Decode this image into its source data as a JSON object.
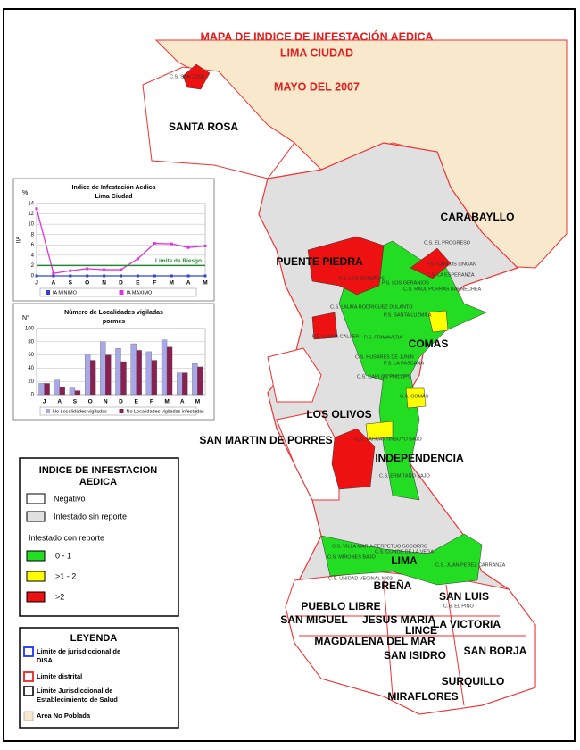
{
  "header": {
    "lines": [
      "MAPA DE INDICE DE INFESTACIÓN AEDICA",
      "LIMA CIUDAD",
      "MAYO DEL 2007"
    ]
  },
  "districts": [
    "SANTA ROSA",
    "CARABAYLLO",
    "PUENTE PIEDRA",
    "COMAS",
    "LOS OLIVOS",
    "SAN MARTIN DE PORRES",
    "INDEPENDENCIA",
    "LIMA",
    "BREÑA",
    "SAN LUIS",
    "PUEBLO LIBRE",
    "SAN MIGUEL",
    "JESUS MARIA",
    "LA VICTORIA",
    "LINCE",
    "MAGDALENA DEL MAR",
    "SAN BORJA",
    "SAN ISIDRO",
    "SURQUILLO",
    "MIRAFLORES"
  ],
  "health_centers": [
    "C.S. SAN JOSE",
    "C.S. EL PROGRESO",
    "P.S. CARLOS LINGAN",
    "C.S. LA ESPERANZA",
    "P.S. LOS SUREÑOS",
    "P.S. LOS GERANIOS",
    "C.S. RAUL PORRAS BARNECHEA",
    "C.S. LAURA RODRIGUEZ DULANTO",
    "P.S. SANTA LUZMILA",
    "P.S. LAURA CALLER",
    "P.S. PRIMAVERA",
    "C.S. HUSARES DE JUNIN",
    "P.S. LA PASCANA",
    "C.S. CARLOS PHILLIPS",
    "C.S. COMAS",
    "C.S. TAHUANTINSUYO BAJO",
    "C.S. ERMITAÑO BAJO",
    "C.S. VILLA MARIA PERPETUO SOCORRO",
    "C.S. CONDE DE LA VEGA",
    "C.S. MIRONES BAJO",
    "C.S. UNIDAD VECINAL Nº03",
    "C.S. JUAN PEREZ CARRANZA",
    "C.S. EL PINO"
  ],
  "infestation_legend": {
    "title": [
      "INDICE DE INFESTACION",
      "AEDICA"
    ],
    "items": [
      {
        "label": "Negativo",
        "color": "#ffffff"
      },
      {
        "label": "Infestado sin reporte",
        "color": "#e0e0e0"
      }
    ],
    "subtitle": "Infestado con reporte",
    "levels": [
      {
        "label": "0 - 1",
        "color": "#22dd22"
      },
      {
        "label": ">1 - 2",
        "color": "#ffff00"
      },
      {
        "label": ">2",
        "color": "#ee1111"
      }
    ]
  },
  "leyenda": {
    "title": "LEYENDA",
    "items": [
      {
        "label": [
          "Limite de jurisdiccional de",
          "DISA"
        ],
        "color": "#1a33ff"
      },
      {
        "label": [
          "Limite distrital"
        ],
        "color": "#ee2222"
      },
      {
        "label": [
          "Limite Jurisdiccional de",
          "Establecimiento de Salud"
        ],
        "color": "#222222"
      },
      {
        "label": [
          "Area No Poblada"
        ],
        "color": "#f8e8cc"
      }
    ]
  },
  "chart_data": [
    {
      "type": "line",
      "title": [
        "Indice de Infestación Aedica",
        "Lima Ciudad"
      ],
      "unit": "%",
      "y_label": "IIA",
      "categories": [
        "J",
        "A",
        "S",
        "O",
        "N",
        "D",
        "E",
        "F",
        "M",
        "A",
        "M"
      ],
      "series": [
        {
          "name": "IA MINIMO",
          "color": "#3344cc",
          "values": [
            0,
            0,
            0,
            0,
            0,
            0,
            0,
            0,
            0,
            0,
            0
          ]
        },
        {
          "name": "IA MAXIMO",
          "color": "#dd33dd",
          "values": [
            13,
            0.5,
            1,
            1.4,
            1.2,
            1.2,
            3.3,
            6.3,
            6.2,
            5.5,
            5.8
          ]
        }
      ],
      "threshold": {
        "label": "Limite de Riesgo",
        "value": 2,
        "color": "#228833"
      },
      "ylim": [
        0,
        14
      ],
      "yticks": [
        0,
        2,
        4,
        6,
        8,
        10,
        12,
        14
      ],
      "grid": true
    },
    {
      "type": "bar",
      "title": [
        "Número de Localidades vigiladas",
        "pormes"
      ],
      "unit": "N°",
      "categories": [
        "J",
        "A",
        "S",
        "O",
        "N",
        "D",
        "E",
        "F",
        "M",
        "A",
        "M"
      ],
      "series": [
        {
          "name": "No Localidades vigiladas",
          "color": "#a8a8e8",
          "values": [
            17,
            22,
            10,
            62,
            80,
            70,
            77,
            65,
            83,
            33,
            47
          ]
        },
        {
          "name": "No Localidades vigiladas infestadas",
          "color": "#8a2050",
          "values": [
            17,
            12,
            6,
            52,
            60,
            50,
            67,
            52,
            72,
            33,
            42
          ]
        }
      ],
      "ylim": [
        0,
        100
      ],
      "yticks": [
        0,
        20,
        40,
        60,
        80,
        100
      ],
      "grid": true
    }
  ]
}
